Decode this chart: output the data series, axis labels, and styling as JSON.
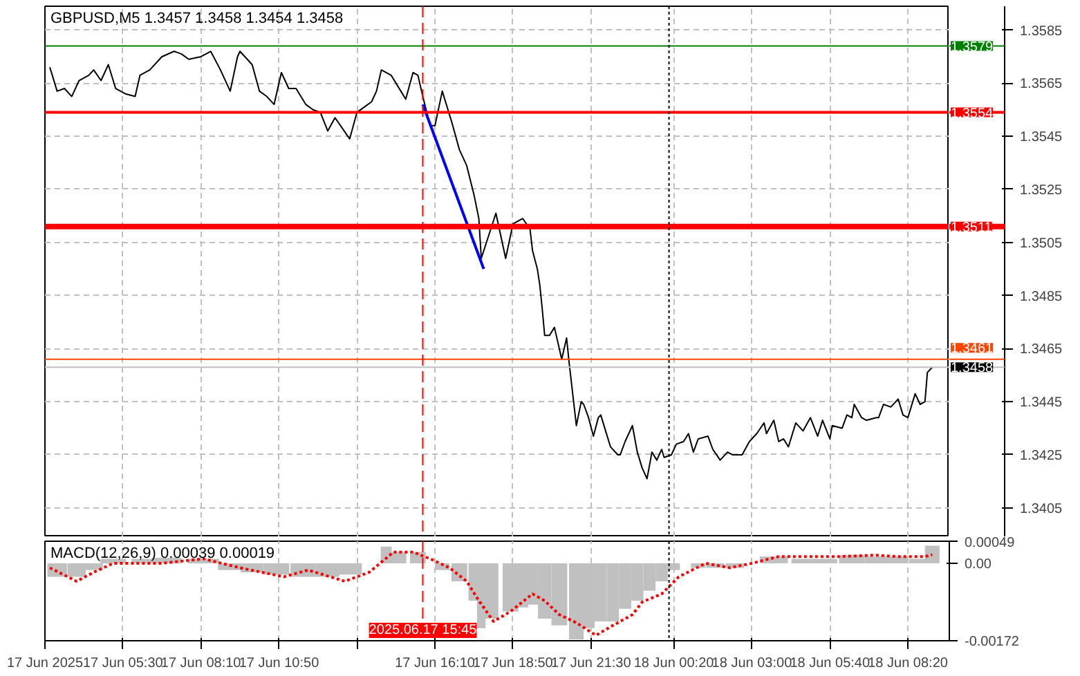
{
  "chart_data": [
    {
      "type": "line",
      "title": "GBPUSD,M5  1.3457 1.3458 1.3454 1.3458",
      "xlim": [
        "2025-06-17T02:50",
        "2025-06-18T09:45"
      ],
      "ylim": [
        1.3394,
        1.3594
      ],
      "xticks": [
        {
          "value": "2025-06-17T02:50",
          "label": null
        },
        {
          "value": "2025-06-17T05:30",
          "label": null
        },
        {
          "value": "2025-06-17T08:10",
          "label": null
        },
        {
          "value": "2025-06-17T10:50",
          "label": null
        },
        {
          "value": "2025-06-17T13:30",
          "label": null
        },
        {
          "value": "2025-06-17T16:10",
          "label": null
        },
        {
          "value": "2025-06-17T18:50",
          "label": null
        },
        {
          "value": "2025-06-17T21:30",
          "label": null
        },
        {
          "value": "2025-06-18T00:20",
          "label": null
        },
        {
          "value": "2025-06-18T03:00",
          "label": null
        },
        {
          "value": "2025-06-18T05:40",
          "label": null
        },
        {
          "value": "2025-06-18T08:20",
          "label": null
        }
      ],
      "yticks": [
        1.3405,
        1.3425,
        1.3445,
        1.3465,
        1.3485,
        1.3505,
        1.3525,
        1.3545,
        1.3565,
        1.3585
      ],
      "tick_labels": "y",
      "grid": true,
      "series": [
        {
          "color": "#000000",
          "x": [
            "2025-06-17T03:00",
            "2025-06-17T03:15",
            "2025-06-17T03:30",
            "2025-06-17T03:45",
            "2025-06-17T04:00",
            "2025-06-17T04:20",
            "2025-06-17T04:30",
            "2025-06-17T04:45",
            "2025-06-17T05:00",
            "2025-06-17T05:15",
            "2025-06-17T05:35",
            "2025-06-17T05:55",
            "2025-06-17T06:05",
            "2025-06-17T06:25",
            "2025-06-17T06:50",
            "2025-06-17T07:15",
            "2025-06-17T07:30",
            "2025-06-17T07:45",
            "2025-06-17T08:10",
            "2025-06-17T08:30",
            "2025-06-17T08:50",
            "2025-06-17T09:10",
            "2025-06-17T09:25",
            "2025-06-17T09:30",
            "2025-06-17T09:55",
            "2025-06-17T10:10",
            "2025-06-17T10:25",
            "2025-06-17T10:40",
            "2025-06-17T10:55",
            "2025-06-17T11:10",
            "2025-06-17T11:25",
            "2025-06-17T11:45",
            "2025-06-17T12:00",
            "2025-06-17T12:15",
            "2025-06-17T12:30",
            "2025-06-17T12:45",
            "2025-06-17T13:00",
            "2025-06-17T13:15",
            "2025-06-17T13:30",
            "2025-06-17T13:45",
            "2025-06-17T14:00",
            "2025-06-17T14:10",
            "2025-06-17T14:20",
            "2025-06-17T14:40",
            "2025-06-17T15:00",
            "2025-06-17T15:10",
            "2025-06-17T15:25",
            "2025-06-17T15:35",
            "2025-06-17T15:45",
            "2025-06-17T16:00",
            "2025-06-17T16:10",
            "2025-06-17T16:25",
            "2025-06-17T16:45",
            "2025-06-17T17:00",
            "2025-06-17T17:15",
            "2025-06-17T17:30",
            "2025-06-17T17:40",
            "2025-06-17T17:45",
            "2025-06-17T18:15",
            "2025-06-17T18:35",
            "2025-06-17T18:50",
            "2025-06-17T19:10",
            "2025-06-17T19:25",
            "2025-06-17T19:30",
            "2025-06-17T19:40",
            "2025-06-17T19:45",
            "2025-06-17T19:50",
            "2025-06-17T19:55",
            "2025-06-17T20:05",
            "2025-06-17T20:15",
            "2025-06-17T20:25",
            "2025-06-17T20:30",
            "2025-06-17T20:40",
            "2025-06-17T20:45",
            "2025-06-17T21:00",
            "2025-06-17T21:10",
            "2025-06-17T21:15",
            "2025-06-17T21:25",
            "2025-06-17T21:35",
            "2025-06-17T21:45",
            "2025-06-17T21:50",
            "2025-06-17T22:00",
            "2025-06-17T22:10",
            "2025-06-17T22:25",
            "2025-06-17T22:30",
            "2025-06-17T22:40",
            "2025-06-17T22:55",
            "2025-06-17T23:05",
            "2025-06-17T23:15",
            "2025-06-17T23:25",
            "2025-06-17T23:35",
            "2025-06-17T23:45",
            "2025-06-17T23:55",
            "2025-06-18T00:00",
            "2025-06-18T00:15",
            "2025-06-18T00:25",
            "2025-06-18T00:40",
            "2025-06-18T00:50",
            "2025-06-18T01:00",
            "2025-06-18T01:10",
            "2025-06-18T01:30",
            "2025-06-18T01:40",
            "2025-06-18T01:55",
            "2025-06-18T02:10",
            "2025-06-18T02:20",
            "2025-06-18T02:40",
            "2025-06-18T02:55",
            "2025-06-18T03:10",
            "2025-06-18T03:25",
            "2025-06-18T03:30",
            "2025-06-18T03:45",
            "2025-06-18T03:55",
            "2025-06-18T04:05",
            "2025-06-18T04:15",
            "2025-06-18T04:30",
            "2025-06-18T04:45",
            "2025-06-18T05:00",
            "2025-06-18T05:15",
            "2025-06-18T05:25",
            "2025-06-18T05:40",
            "2025-06-18T05:45",
            "2025-06-18T06:05",
            "2025-06-18T06:15",
            "2025-06-18T06:25",
            "2025-06-18T06:30",
            "2025-06-18T06:45",
            "2025-06-18T06:55",
            "2025-06-18T07:15",
            "2025-06-18T07:20",
            "2025-06-18T07:30",
            "2025-06-18T07:45",
            "2025-06-18T08:00",
            "2025-06-18T08:10",
            "2025-06-18T08:20",
            "2025-06-18T08:35",
            "2025-06-18T08:45",
            "2025-06-18T08:55",
            "2025-06-18T09:00",
            "2025-06-18T09:10"
          ],
          "values": [
            1.3571,
            1.3562,
            1.3563,
            1.356,
            1.3566,
            1.3568,
            1.357,
            1.3566,
            1.3572,
            1.3563,
            1.3561,
            1.356,
            1.3568,
            1.357,
            1.3575,
            1.3577,
            1.3576,
            1.3574,
            1.3575,
            1.3577,
            1.357,
            1.3562,
            1.3575,
            1.3577,
            1.3572,
            1.3562,
            1.356,
            1.3557,
            1.3569,
            1.3563,
            1.3563,
            1.3557,
            1.3555,
            1.3554,
            1.3547,
            1.3552,
            1.3548,
            1.3544,
            1.3554,
            1.3556,
            1.3558,
            1.3562,
            1.357,
            1.3568,
            1.3562,
            1.3559,
            1.3569,
            1.3568,
            1.356,
            1.3549,
            1.3549,
            1.3562,
            1.355,
            1.354,
            1.3534,
            1.3523,
            1.3514,
            1.3499,
            1.3516,
            1.3499,
            1.3512,
            1.3514,
            1.351,
            1.3502,
            1.3495,
            1.3489,
            1.348,
            1.347,
            1.347,
            1.3473,
            1.3465,
            1.3461,
            1.3469,
            1.346,
            1.3436,
            1.3445,
            1.3444,
            1.3439,
            1.3432,
            1.3439,
            1.344,
            1.3434,
            1.3428,
            1.3425,
            1.3425,
            1.343,
            1.3436,
            1.3426,
            1.342,
            1.3416,
            1.3426,
            1.3423,
            1.3427,
            1.3424,
            1.3425,
            1.3429,
            1.343,
            1.3433,
            1.3426,
            1.3431,
            1.3432,
            1.3427,
            1.3423,
            1.3426,
            1.3425,
            1.3425,
            1.343,
            1.3433,
            1.3437,
            1.3433,
            1.3438,
            1.343,
            1.3431,
            1.3428,
            1.3437,
            1.3434,
            1.3439,
            1.3432,
            1.3438,
            1.3431,
            1.3436,
            1.3435,
            1.344,
            1.3439,
            1.3444,
            1.3439,
            1.3438,
            1.3439,
            1.3439,
            1.3444,
            1.3443,
            1.3446,
            1.344,
            1.3439,
            1.3448,
            1.3444,
            1.3445,
            1.3456,
            1.3458
          ]
        },
        {
          "type": "line",
          "color": "#0000ff",
          "x": [
            "2025-06-17T15:45",
            "2025-06-17T17:50"
          ],
          "values": [
            1.3557,
            1.3495
          ]
        }
      ],
      "ref_lines": [
        {
          "axis": "y",
          "value": 1.3579,
          "label": "1.3579",
          "color": "#008000"
        },
        {
          "axis": "y",
          "value": 1.3554,
          "label": "1.3554",
          "color": "#ff0000"
        },
        {
          "axis": "y",
          "value": 1.3511,
          "label": "1.3511",
          "color": "#ff0000"
        },
        {
          "axis": "y",
          "value": 1.3461,
          "label": "1.3461",
          "color": "#ff4500"
        },
        {
          "axis": "y",
          "value": 1.3458,
          "label": "1.3458",
          "color": "#c0c0c0"
        },
        {
          "axis": "x",
          "value": "2025-06-17T15:45",
          "color": "#ff0000",
          "line_style": "dashed"
        },
        {
          "axis": "x",
          "value": "2025-06-18T00:10",
          "color": "#000000",
          "line_style": "dotted"
        }
      ]
    },
    {
      "type": "bar",
      "title": "MACD(12,26,9) 0.00039 0.00019",
      "xlim": [
        "2025-06-17T02:50",
        "2025-06-18T09:45"
      ],
      "ylim": [
        -0.00172,
        0.00049
      ],
      "xticks": [
        {
          "value": "2025-06-17T02:50",
          "label": "17 Jun 2025"
        },
        {
          "value": "2025-06-17T05:30",
          "label": "17 Jun 05:30"
        },
        {
          "value": "2025-06-17T08:10",
          "label": "17 Jun 08:10"
        },
        {
          "value": "2025-06-17T10:50",
          "label": "17 Jun 10:50"
        },
        {
          "value": "2025-06-17T13:30",
          "label": null
        },
        {
          "value": "2025-06-17T16:10",
          "label": "17 Jun 16:10"
        },
        {
          "value": "2025-06-17T18:50",
          "label": "17 Jun 18:50"
        },
        {
          "value": "2025-06-17T21:30",
          "label": "17 Jun 21:30"
        },
        {
          "value": "2025-06-18T00:20",
          "label": "18 Jun 00:20"
        },
        {
          "value": "2025-06-18T03:00",
          "label": "18 Jun 03:00"
        },
        {
          "value": "2025-06-18T05:40",
          "label": "18 Jun 05:40"
        },
        {
          "value": "2025-06-18T08:20",
          "label": "18 Jun 08:20"
        }
      ],
      "yticks": [
        {
          "value": 0.00049,
          "label": "0.00049"
        },
        {
          "value": 0,
          "label": "0.00"
        },
        {
          "value": -0.00172,
          "label": "-0.00172"
        }
      ],
      "grid": "x",
      "series": [
        {
          "type": "bar",
          "color": "#c0c0c0",
          "x": [
            "2025-06-17T03:15",
            "2025-06-17T03:55",
            "2025-06-17T04:30",
            "2025-06-17T05:10",
            "2025-06-17T06:15",
            "2025-06-17T07:00",
            "2025-06-17T08:15",
            "2025-06-17T09:10",
            "2025-06-17T09:55",
            "2025-06-17T10:45",
            "2025-06-17T11:40",
            "2025-06-17T12:30",
            "2025-06-17T13:15",
            "2025-06-17T14:10",
            "2025-06-17T14:30",
            "2025-06-17T14:55",
            "2025-06-17T15:35",
            "2025-06-17T16:00",
            "2025-06-17T16:25",
            "2025-06-17T17:00",
            "2025-06-17T17:30",
            "2025-06-17T17:45",
            "2025-06-17T18:05",
            "2025-06-17T18:45",
            "2025-06-17T19:10",
            "2025-06-17T19:30",
            "2025-06-17T19:55",
            "2025-06-17T20:25",
            "2025-06-17T21:00",
            "2025-06-17T21:25",
            "2025-06-17T21:50",
            "2025-06-17T22:15",
            "2025-06-17T22:40",
            "2025-06-17T23:05",
            "2025-06-17T23:30",
            "2025-06-17T23:55",
            "2025-06-18T00:20",
            "2025-06-18T00:45",
            "2025-06-18T01:10",
            "2025-06-18T01:45",
            "2025-06-18T02:25",
            "2025-06-18T03:00",
            "2025-06-18T03:30",
            "2025-06-18T03:55",
            "2025-06-18T04:45",
            "2025-06-18T05:30",
            "2025-06-18T06:25",
            "2025-06-18T07:15",
            "2025-06-18T08:00",
            "2025-06-18T08:40",
            "2025-06-18T09:10"
          ],
          "values": [
            -0.0003,
            -0.0003,
            -0.00015,
            0.0001,
            0.0001,
            0.00012,
            0.0001,
            -0.00015,
            -0.0002,
            -0.00025,
            -0.0003,
            -0.0003,
            -0.00025,
            null,
            0.00037,
            0.00025,
            0.00025,
            null,
            -0.00015,
            -0.0004,
            -0.00083,
            -0.00144,
            -0.00123,
            -0.00107,
            -0.00098,
            -0.00092,
            -0.00123,
            -0.00138,
            -0.00169,
            -0.00144,
            -0.00129,
            -0.00129,
            -0.00101,
            -0.00083,
            -0.00061,
            -0.0004,
            -0.00015,
            null,
            -0.0001,
            -0.0001,
            -0.0001,
            null,
            0.00015,
            0.00015,
            0.0001,
            0.0001,
            0.00018,
            0.00015,
            0.00015,
            0.0001,
            0.00039
          ]
        },
        {
          "type": "line",
          "color": "#ff0000",
          "line_style": "dotted",
          "x": [
            "2025-06-17T03:00",
            "2025-06-17T03:55",
            "2025-06-17T04:30",
            "2025-06-17T05:10",
            "2025-06-17T06:00",
            "2025-06-17T06:50",
            "2025-06-17T08:15",
            "2025-06-17T09:30",
            "2025-06-17T11:00",
            "2025-06-17T11:50",
            "2025-06-17T13:05",
            "2025-06-17T13:55",
            "2025-06-17T14:45",
            "2025-06-17T15:25",
            "2025-06-17T16:00",
            "2025-06-17T16:40",
            "2025-06-17T17:15",
            "2025-06-17T17:40",
            "2025-06-17T18:10",
            "2025-06-17T18:45",
            "2025-06-17T19:30",
            "2025-06-17T19:55",
            "2025-06-17T20:25",
            "2025-06-17T21:00",
            "2025-06-17T21:40",
            "2025-06-17T22:15",
            "2025-06-17T22:55",
            "2025-06-17T23:15",
            "2025-06-17T23:55",
            "2025-06-18T00:30",
            "2025-06-18T01:25",
            "2025-06-18T02:15",
            "2025-06-18T03:00",
            "2025-06-18T03:55",
            "2025-06-18T04:45",
            "2025-06-18T06:00",
            "2025-06-18T07:15",
            "2025-06-18T08:00",
            "2025-06-18T08:55",
            "2025-06-18T09:10"
          ],
          "values": [
            -0.0001,
            -0.0004,
            -0.0002,
            0,
            0,
            0,
            0.0001,
            -0.0001,
            -0.0003,
            -0.00015,
            -0.0004,
            -0.0002,
            0.00025,
            0.00025,
            0.0001,
            -0.0001,
            -0.0004,
            -0.00083,
            -0.00129,
            -0.00107,
            -0.00068,
            -0.00083,
            -0.00114,
            -0.00132,
            -0.0016,
            -0.00138,
            -0.00114,
            -0.00086,
            -0.00068,
            -0.0003,
            0,
            -0.0001,
            0,
            0.00015,
            0.00015,
            0.00015,
            0.00018,
            0.00015,
            0.00015,
            0.00019
          ]
        }
      ],
      "ref_lines": [
        {
          "axis": "x",
          "value": "2025-06-17T15:45",
          "label": "2025.06.17 15:45",
          "color": "#ff0000",
          "line_style": "dashed"
        },
        {
          "axis": "x",
          "value": "2025-06-18T00:10",
          "color": "#000000",
          "line_style": "dotted"
        }
      ]
    }
  ]
}
